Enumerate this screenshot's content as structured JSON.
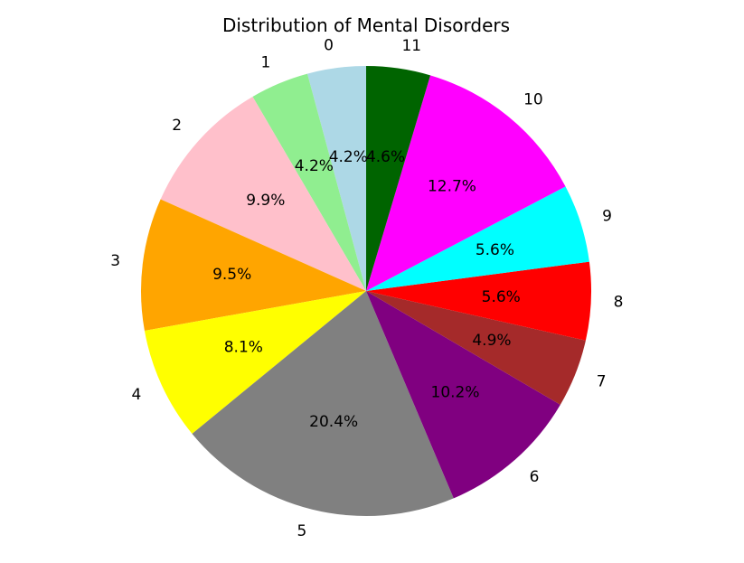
{
  "chart_data": {
    "type": "pie",
    "title": "Distribution of Mental Disorders",
    "start_angle_deg": 90,
    "direction": "counterclockwise",
    "slices": [
      {
        "label": "0",
        "value": 4.2,
        "pct_label": "4.2%",
        "color": "#add8e6"
      },
      {
        "label": "1",
        "value": 4.2,
        "pct_label": "4.2%",
        "color": "#90ee90"
      },
      {
        "label": "2",
        "value": 9.9,
        "pct_label": "9.9%",
        "color": "#ffc0cb"
      },
      {
        "label": "3",
        "value": 9.5,
        "pct_label": "9.5%",
        "color": "#ffa500"
      },
      {
        "label": "4",
        "value": 8.1,
        "pct_label": "8.1%",
        "color": "#ffff00"
      },
      {
        "label": "5",
        "value": 20.4,
        "pct_label": "20.4%",
        "color": "#808080"
      },
      {
        "label": "6",
        "value": 10.2,
        "pct_label": "10.2%",
        "color": "#800080"
      },
      {
        "label": "7",
        "value": 4.9,
        "pct_label": "4.9%",
        "color": "#a52a2a"
      },
      {
        "label": "8",
        "value": 5.6,
        "pct_label": "5.6%",
        "color": "#ff0000"
      },
      {
        "label": "9",
        "value": 5.6,
        "pct_label": "5.6%",
        "color": "#00ffff"
      },
      {
        "label": "10",
        "value": 12.7,
        "pct_label": "12.7%",
        "color": "#ff00ff"
      },
      {
        "label": "11",
        "value": 4.6,
        "pct_label": "4.6%",
        "color": "#006400"
      }
    ]
  }
}
